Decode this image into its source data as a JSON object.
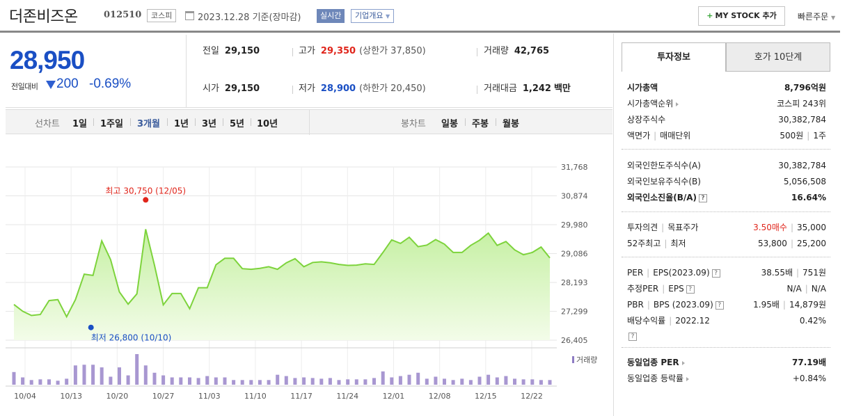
{
  "header": {
    "company": "더존비즈온",
    "code": "012510",
    "market": "코스피",
    "date": "2023.12.28 기준(장마감)",
    "realtime": "실시간",
    "overview": "기업개요",
    "mystock_plus": "+",
    "mystock": "MY STOCK 추가",
    "quick_order": "빠른주문"
  },
  "price": {
    "current": "28,950",
    "change_label": "전일대비",
    "change": "200",
    "change_rate": "-0.69%",
    "direction": "down"
  },
  "quotes": {
    "prev_close_label": "전일",
    "prev_close": "29,150",
    "high_label": "고가",
    "high": "29,350",
    "upper_limit": "(상한가 37,850)",
    "volume_label": "거래량",
    "volume": "42,765",
    "open_label": "시가",
    "open": "29,150",
    "low_label": "저가",
    "low": "28,900",
    "lower_limit": "(하한가 20,450)",
    "trade_value_label": "거래대금",
    "trade_value": "1,242",
    "trade_value_unit": "백만"
  },
  "period_bar": {
    "line_chart_label": "선차트",
    "line_periods": [
      "1일",
      "1주일",
      "3개월",
      "1년",
      "3년",
      "5년",
      "10년"
    ],
    "active_period": "3개월",
    "candle_label": "봉차트",
    "candle_periods": [
      "일봉",
      "주봉",
      "월봉"
    ]
  },
  "chart_data": {
    "type": "area",
    "y_ticks": [
      "31,768",
      "30,874",
      "29,980",
      "29,086",
      "28,193",
      "27,299",
      "26,405"
    ],
    "ylim": [
      26405,
      31768
    ],
    "x_ticks": [
      "10/04",
      "10/13",
      "10/20",
      "10/27",
      "11/03",
      "11/10",
      "11/17",
      "11/24",
      "12/01",
      "12/08",
      "12/15",
      "12/22"
    ],
    "high_label": "최고 30,750 (12/05)",
    "high_value": 30750,
    "low_label": "최저 26,800 (10/10)",
    "low_value": 26800,
    "volume_legend": "거래량",
    "prices": [
      27510,
      27300,
      27170,
      27200,
      27630,
      27660,
      27130,
      27660,
      28450,
      28410,
      29480,
      28900,
      27900,
      27520,
      27840,
      29840,
      28720,
      27500,
      27850,
      27850,
      27380,
      28030,
      28030,
      28740,
      28940,
      28940,
      28620,
      28600,
      28630,
      28680,
      28600,
      28800,
      28930,
      28680,
      28810,
      28830,
      28800,
      28750,
      28720,
      28730,
      28770,
      28750,
      29120,
      29510,
      29400,
      29590,
      29300,
      29350,
      29520,
      29380,
      29120,
      29120,
      29340,
      29500,
      29720,
      29340,
      29460,
      29200,
      29050,
      29120,
      29290,
      28950
    ],
    "volumes": [
      19,
      11,
      7,
      8,
      8,
      6,
      9,
      29,
      30,
      30,
      26,
      12,
      26,
      14,
      46,
      29,
      18,
      14,
      11,
      11,
      11,
      10,
      13,
      11,
      11,
      7,
      7,
      7,
      7,
      7,
      15,
      13,
      10,
      11,
      10,
      9,
      10,
      7,
      8,
      8,
      8,
      10,
      20,
      11,
      13,
      15,
      18,
      9,
      12,
      9,
      7,
      9,
      7,
      12,
      15,
      11,
      13,
      9,
      8,
      8,
      7,
      7
    ]
  },
  "invest_panel": {
    "tab_invest": "투자정보",
    "tab_order": "호가 10단계",
    "market_cap_label": "시가총액",
    "market_cap": "8,796억원",
    "cap_rank_label": "시가총액순위",
    "cap_rank": "코스피 243위",
    "shares_label": "상장주식수",
    "shares": "30,382,784",
    "par_label": "액면가",
    "lot_label": "매매단위",
    "par": "500원",
    "lot": "1주",
    "foreign_limit_label": "외국인한도주식수(A)",
    "foreign_limit": "30,382,784",
    "foreign_hold_label": "외국인보유주식수(B)",
    "foreign_hold": "5,056,508",
    "foreign_ratio_label": "외국인소진율(B/A)",
    "foreign_ratio": "16.64%",
    "opinion_label": "투자의견",
    "target_label": "목표주가",
    "opinion": "3.50매수",
    "target": "35,000",
    "w52_high_label": "52주최고",
    "w52_low_label": "최저",
    "w52_high": "53,800",
    "w52_low": "25,200",
    "per_label": "PER",
    "eps_label": "EPS(2023.09)",
    "per": "38.55배",
    "eps": "751원",
    "est_per_label": "추정PER",
    "est_eps_label": "EPS",
    "est_per": "N/A",
    "est_eps": "N/A",
    "pbr_label": "PBR",
    "bps_label": "BPS (2023.09)",
    "pbr": "1.95배",
    "bps": "14,879원",
    "dividend_label": "배당수익률",
    "dividend_year": "2022.12",
    "dividend": "0.42%",
    "industry_per_label": "동일업종 PER",
    "industry_per": "77.19배",
    "industry_rate_label": "동일업종 등락률",
    "industry_rate": "+0.84%",
    "help_glyph": "?"
  },
  "colors": {
    "down": "#1a4fc4",
    "up": "#e0251b",
    "line": "#7dd33c",
    "fill_top": "#c5f0a2",
    "fill_bottom": "#f1fce6",
    "volume": "#a897d1"
  }
}
